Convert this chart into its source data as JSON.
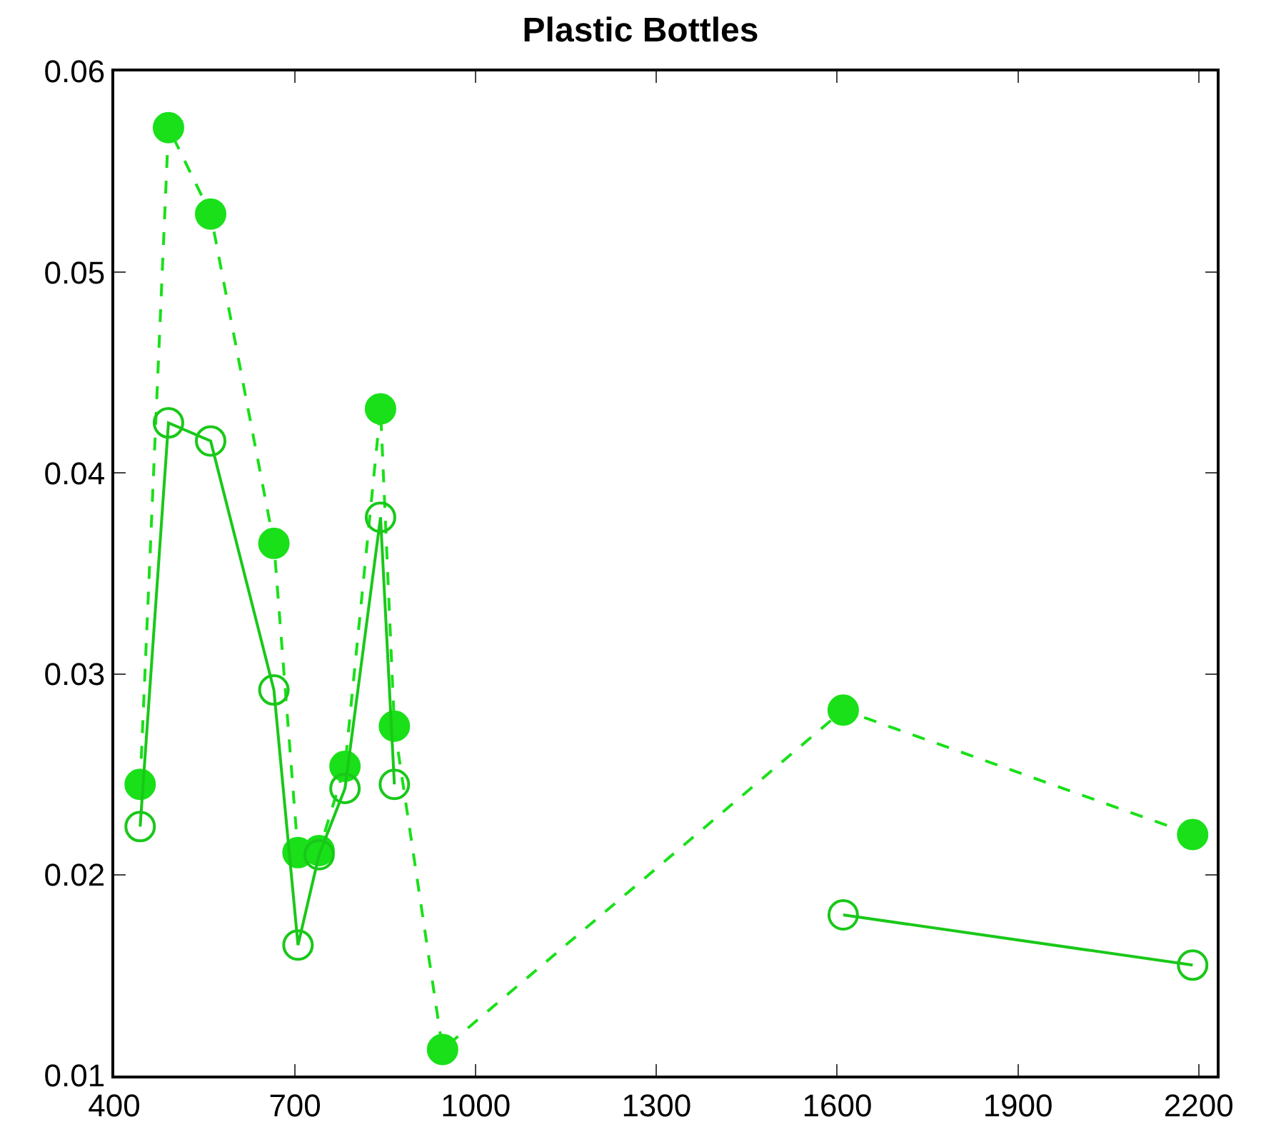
{
  "chart_data": {
    "type": "line",
    "title": "Plastic Bottles",
    "x": [
      443,
      490,
      560,
      665,
      705,
      740,
      783,
      842,
      865,
      945,
      1610,
      2190
    ],
    "series": [
      {
        "color": "#19e019",
        "marker": "circle",
        "line_style": "dashed",
        "values": [
          0.0245,
          0.0572,
          0.0529,
          0.0365,
          0.0211,
          0.0212,
          0.0254,
          0.0432,
          0.0274,
          0.0113,
          0.0282,
          0.022
        ]
      },
      {
        "color": "#19c819",
        "marker": "circle-open",
        "line_style": "solid",
        "values": [
          0.0224,
          0.0425,
          0.0416,
          0.0292,
          0.0165,
          0.021,
          0.0243,
          0.0378,
          0.0245,
          null,
          0.018,
          0.0155
        ]
      }
    ],
    "xlim": [
      400,
      2230
    ],
    "xticks": [
      400,
      700,
      1000,
      1300,
      1600,
      1900,
      2200
    ],
    "ylim": [
      0.01,
      0.06
    ],
    "yticks": [
      0.01,
      0.02,
      0.03,
      0.04,
      0.05,
      0.06
    ],
    "grid": false
  }
}
